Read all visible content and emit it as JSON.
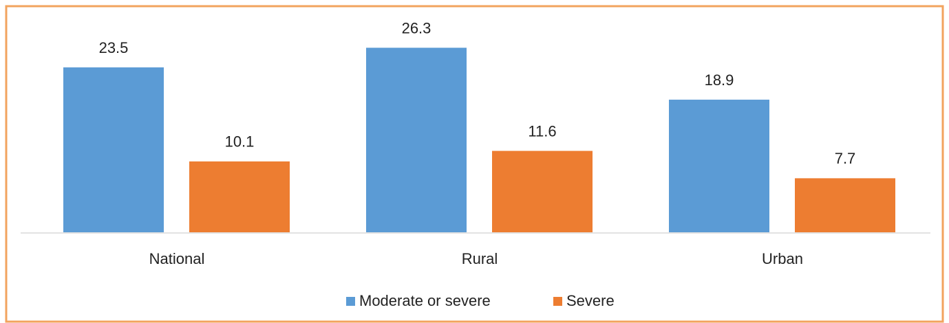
{
  "chart_data": {
    "type": "bar",
    "categories": [
      "National",
      "Rural",
      "Urban"
    ],
    "series": [
      {
        "name": "Moderate or severe",
        "color": "#5b9bd5",
        "values": [
          23.5,
          26.3,
          18.9
        ]
      },
      {
        "name": "Severe",
        "color": "#ed7d31",
        "values": [
          10.1,
          11.6,
          7.7
        ]
      }
    ],
    "legend": "bottom"
  }
}
